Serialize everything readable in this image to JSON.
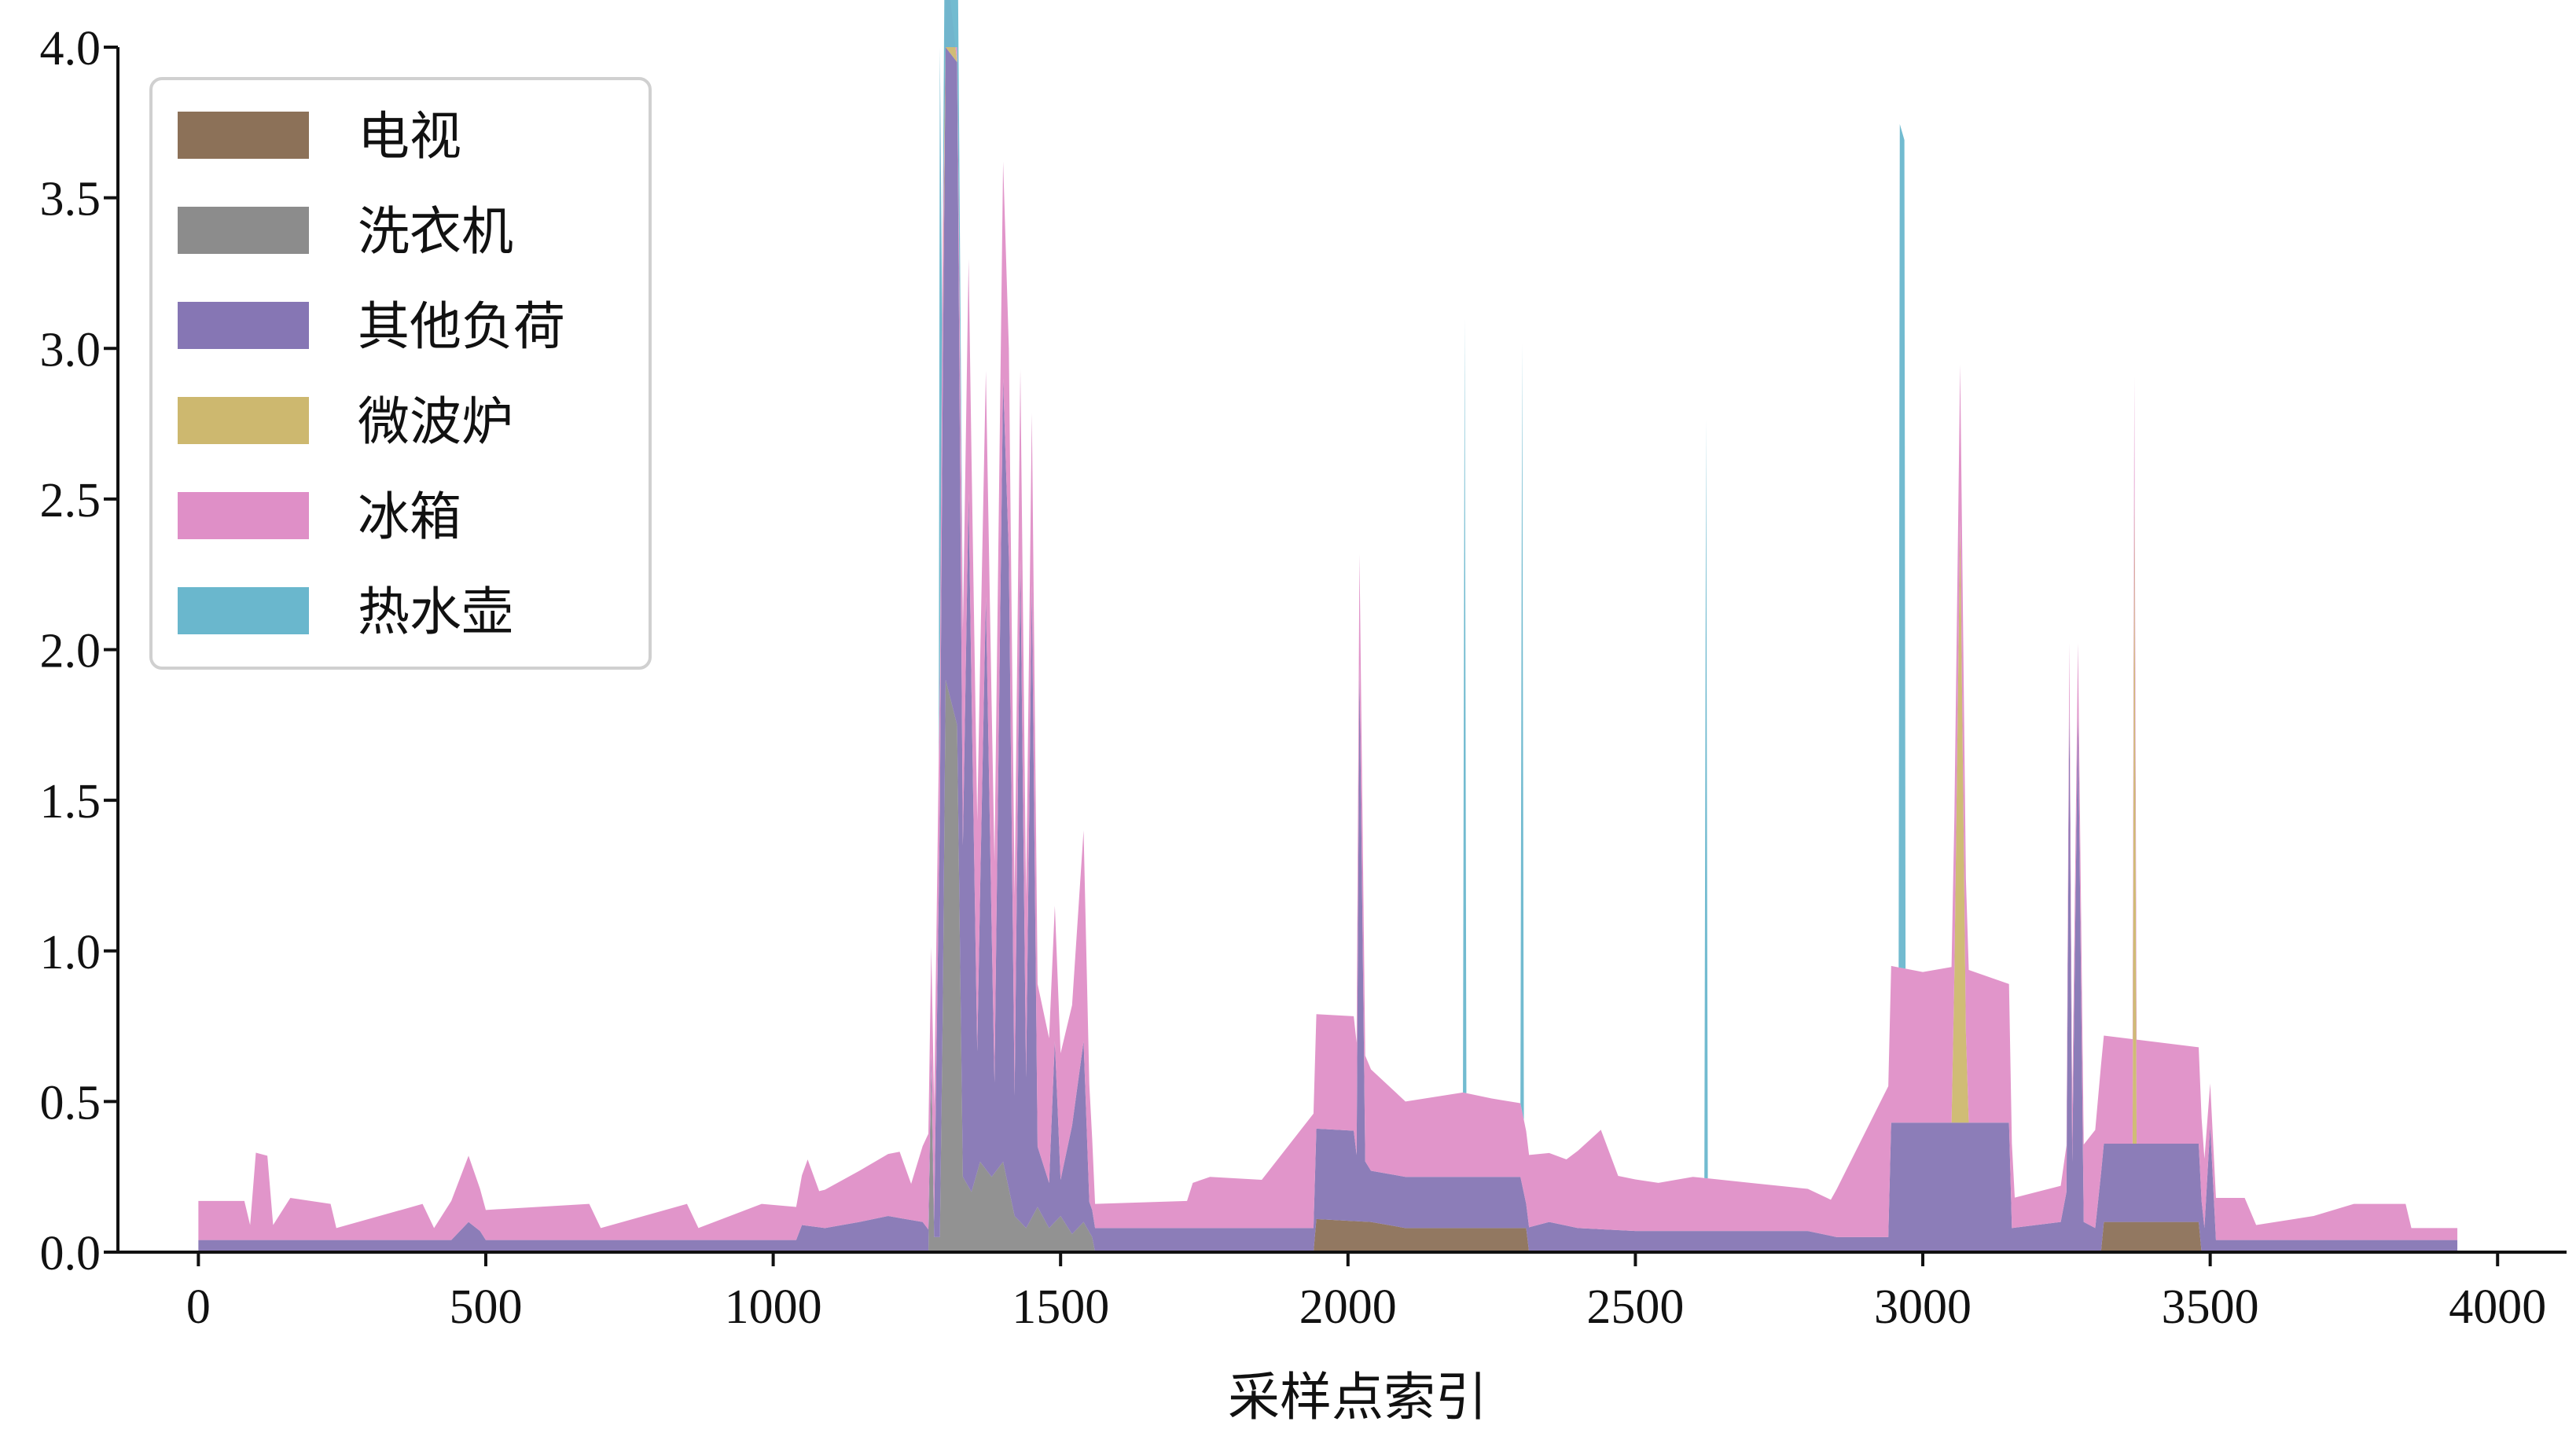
{
  "chart_data": {
    "type": "area",
    "stacked": true,
    "title": "",
    "xlabel": "采样点索引",
    "ylabel": "",
    "xlim": [
      -140,
      4120
    ],
    "ylim": [
      0,
      4.0
    ],
    "xticks": [
      0,
      500,
      1000,
      1500,
      2000,
      2500,
      3000,
      3500,
      4000
    ],
    "yticks": [
      0.0,
      0.5,
      1.0,
      1.5,
      2.0,
      2.5,
      3.0,
      3.5,
      4.0
    ],
    "xtick_labels": [
      "0",
      "500",
      "1000",
      "1500",
      "2000",
      "2500",
      "3000",
      "3500",
      "4000"
    ],
    "ytick_labels": [
      "0.0",
      "0.5",
      "1.0",
      "1.5",
      "2.0",
      "2.5",
      "3.0",
      "3.5",
      "4.0"
    ],
    "grid": false,
    "legend_position": "top-left",
    "series": [
      {
        "name": "电视",
        "color": "#8c7158",
        "points": [
          [
            0,
            0
          ],
          [
            1940,
            0
          ],
          [
            1945,
            0.11
          ],
          [
            2040,
            0.1
          ],
          [
            2100,
            0.08
          ],
          [
            2310,
            0.08
          ],
          [
            2315,
            0
          ],
          [
            3310,
            0
          ],
          [
            3315,
            0.1
          ],
          [
            3480,
            0.1
          ],
          [
            3485,
            0
          ],
          [
            3930,
            0
          ]
        ]
      },
      {
        "name": "洗衣机",
        "color": "#8c8c8c",
        "points": [
          [
            0,
            0
          ],
          [
            1270,
            0
          ],
          [
            1275,
            0.6
          ],
          [
            1280,
            0.05
          ],
          [
            1290,
            0.05
          ],
          [
            1295,
            0.8
          ],
          [
            1300,
            1.9
          ],
          [
            1320,
            1.75
          ],
          [
            1330,
            0.25
          ],
          [
            1345,
            0.2
          ],
          [
            1360,
            0.3
          ],
          [
            1380,
            0.25
          ],
          [
            1400,
            0.3
          ],
          [
            1420,
            0.12
          ],
          [
            1440,
            0.08
          ],
          [
            1460,
            0.15
          ],
          [
            1480,
            0.08
          ],
          [
            1500,
            0.12
          ],
          [
            1520,
            0.06
          ],
          [
            1540,
            0.1
          ],
          [
            1555,
            0.05
          ],
          [
            1560,
            0
          ],
          [
            3930,
            0
          ]
        ]
      },
      {
        "name": "其他负荷",
        "color": "#8676b4",
        "points": [
          [
            0,
            0.04
          ],
          [
            440,
            0.04
          ],
          [
            470,
            0.1
          ],
          [
            490,
            0.07
          ],
          [
            500,
            0.04
          ],
          [
            1040,
            0.04
          ],
          [
            1050,
            0.09
          ],
          [
            1090,
            0.08
          ],
          [
            1150,
            0.1
          ],
          [
            1200,
            0.12
          ],
          [
            1260,
            0.1
          ],
          [
            1280,
            0.05
          ],
          [
            1295,
            2.1
          ],
          [
            1300,
            2.4
          ],
          [
            1320,
            2.2
          ],
          [
            1330,
            1.1
          ],
          [
            1340,
            2.3
          ],
          [
            1355,
            0.4
          ],
          [
            1370,
            1.9
          ],
          [
            1385,
            0.3
          ],
          [
            1400,
            2.6
          ],
          [
            1410,
            2.1
          ],
          [
            1420,
            0.4
          ],
          [
            1430,
            2.2
          ],
          [
            1440,
            0.5
          ],
          [
            1450,
            2.1
          ],
          [
            1460,
            0.2
          ],
          [
            1480,
            0.15
          ],
          [
            1490,
            0.6
          ],
          [
            1500,
            0.12
          ],
          [
            1540,
            0.6
          ],
          [
            1550,
            0.1
          ],
          [
            1560,
            0.08
          ],
          [
            1940,
            0.08
          ],
          [
            1945,
            0.3
          ],
          [
            2010,
            0.3
          ],
          [
            2015,
            0.22
          ],
          [
            2020,
            1.85
          ],
          [
            2030,
            0.2
          ],
          [
            2040,
            0.17
          ],
          [
            2300,
            0.17
          ],
          [
            2310,
            0.08
          ],
          [
            2350,
            0.1
          ],
          [
            2400,
            0.08
          ],
          [
            2500,
            0.07
          ],
          [
            2800,
            0.07
          ],
          [
            2850,
            0.05
          ],
          [
            2940,
            0.05
          ],
          [
            2945,
            0.43
          ],
          [
            3150,
            0.43
          ],
          [
            3155,
            0.08
          ],
          [
            3240,
            0.1
          ],
          [
            3250,
            0.2
          ],
          [
            3255,
            1.85
          ],
          [
            3260,
            0.3
          ],
          [
            3270,
            1.8
          ],
          [
            3280,
            0.1
          ],
          [
            3300,
            0.08
          ],
          [
            3310,
            0.26
          ],
          [
            3480,
            0.26
          ],
          [
            3490,
            0.08
          ],
          [
            3500,
            0.42
          ],
          [
            3510,
            0.04
          ],
          [
            3930,
            0.04
          ]
        ]
      },
      {
        "name": "微波炉",
        "color": "#cdb86f",
        "points": [
          [
            0,
            0
          ],
          [
            3050,
            0
          ],
          [
            3055,
            0.5
          ],
          [
            3065,
            2.0
          ],
          [
            3075,
            0.3
          ],
          [
            3080,
            0
          ],
          [
            3365,
            0
          ],
          [
            3368,
            2.2
          ],
          [
            3372,
            0
          ],
          [
            3930,
            0
          ]
        ]
      },
      {
        "name": "冰箱",
        "color": "#df8fc7",
        "points": [
          [
            0,
            0.13
          ],
          [
            80,
            0.13
          ],
          [
            90,
            0.05
          ],
          [
            100,
            0.29
          ],
          [
            120,
            0.28
          ],
          [
            130,
            0.05
          ],
          [
            160,
            0.14
          ],
          [
            230,
            0.12
          ],
          [
            240,
            0.04
          ],
          [
            390,
            0.12
          ],
          [
            410,
            0.04
          ],
          [
            470,
            0.22
          ],
          [
            500,
            0.1
          ],
          [
            680,
            0.12
          ],
          [
            700,
            0.04
          ],
          [
            850,
            0.12
          ],
          [
            870,
            0.04
          ],
          [
            980,
            0.12
          ],
          [
            1040,
            0.11
          ],
          [
            1060,
            0.22
          ],
          [
            1080,
            0.12
          ],
          [
            1220,
            0.22
          ],
          [
            1240,
            0.12
          ],
          [
            1340,
            0.78
          ],
          [
            1400,
            0.72
          ],
          [
            1500,
            0.42
          ],
          [
            1520,
            0.4
          ],
          [
            1540,
            0.7
          ],
          [
            1560,
            0.08
          ],
          [
            1720,
            0.09
          ],
          [
            1730,
            0.15
          ],
          [
            1760,
            0.17
          ],
          [
            1850,
            0.16
          ],
          [
            1940,
            0.38
          ],
          [
            2010,
            0.38
          ],
          [
            2100,
            0.25
          ],
          [
            2200,
            0.28
          ],
          [
            2250,
            0.26
          ],
          [
            2380,
            0.22
          ],
          [
            2440,
            0.33
          ],
          [
            2470,
            0.18
          ],
          [
            2540,
            0.16
          ],
          [
            2600,
            0.18
          ],
          [
            2700,
            0.16
          ],
          [
            2800,
            0.14
          ],
          [
            2840,
            0.12
          ],
          [
            2945,
            0.52
          ],
          [
            3000,
            0.5
          ],
          [
            3060,
            0.52
          ],
          [
            3150,
            0.46
          ],
          [
            3160,
            0.1
          ],
          [
            3240,
            0.12
          ],
          [
            3310,
            0.36
          ],
          [
            3480,
            0.32
          ],
          [
            3500,
            0.14
          ],
          [
            3560,
            0.14
          ],
          [
            3580,
            0.05
          ],
          [
            3680,
            0.08
          ],
          [
            3750,
            0.12
          ],
          [
            3840,
            0.12
          ],
          [
            3850,
            0.04
          ],
          [
            3930,
            0.04
          ]
        ]
      },
      {
        "name": "热水壶",
        "color": "#6ab7cd",
        "points": [
          [
            0,
            0
          ],
          [
            1288,
            0
          ],
          [
            1290,
            4.0
          ],
          [
            1294,
            0
          ],
          [
            2200,
            0
          ],
          [
            2203,
            2.57
          ],
          [
            2206,
            0
          ],
          [
            2300,
            0
          ],
          [
            2303,
            2.55
          ],
          [
            2306,
            0
          ],
          [
            2620,
            0
          ],
          [
            2623,
            2.52
          ],
          [
            2626,
            0
          ],
          [
            2958,
            0
          ],
          [
            2960,
            2.8
          ],
          [
            2968,
            2.75
          ],
          [
            2970,
            0
          ],
          [
            3930,
            0
          ]
        ]
      }
    ]
  }
}
